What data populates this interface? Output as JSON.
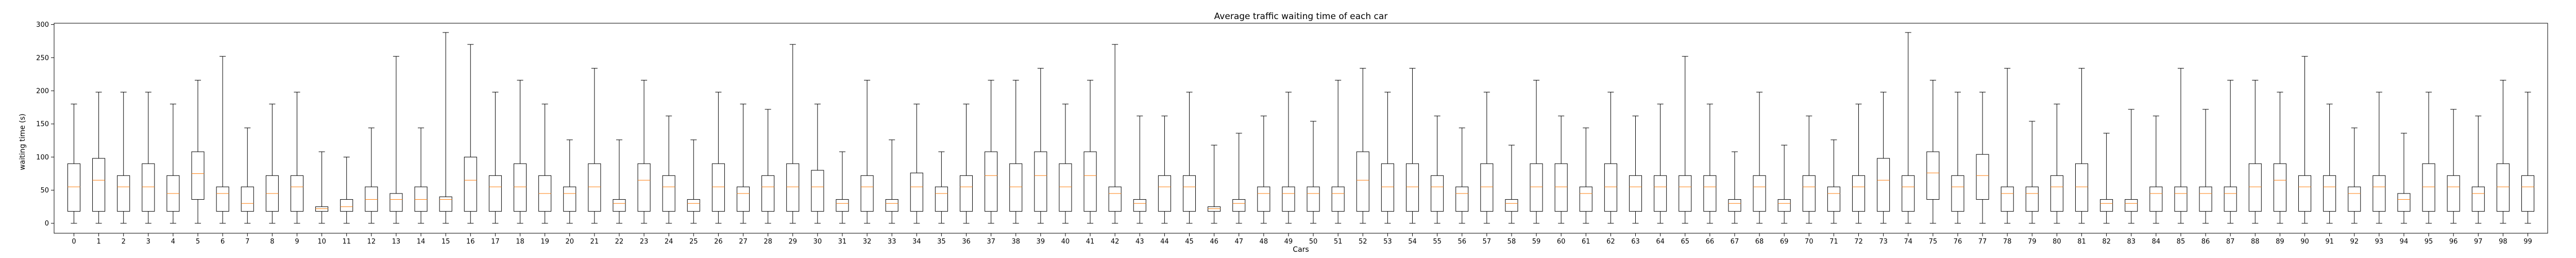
{
  "chart_data": {
    "type": "boxplot",
    "title": "Average traffic waiting time of each car",
    "xlabel": "Cars",
    "ylabel": "waiting time (s)",
    "ylim": [
      -15,
      302
    ],
    "yticks": [
      0,
      50,
      100,
      150,
      200,
      250,
      300
    ],
    "categories": [
      "0",
      "1",
      "2",
      "3",
      "4",
      "5",
      "6",
      "7",
      "8",
      "9",
      "10",
      "11",
      "12",
      "13",
      "14",
      "15",
      "16",
      "17",
      "18",
      "19",
      "20",
      "21",
      "22",
      "23",
      "24",
      "25",
      "26",
      "27",
      "28",
      "29",
      "30",
      "31",
      "32",
      "33",
      "34",
      "35",
      "36",
      "37",
      "38",
      "39",
      "40",
      "41",
      "42",
      "43",
      "44",
      "45",
      "46",
      "47",
      "48",
      "49",
      "50",
      "51",
      "52",
      "53",
      "54",
      "55",
      "56",
      "57",
      "58",
      "59",
      "60",
      "61",
      "62",
      "63",
      "64",
      "65",
      "66",
      "67",
      "68",
      "69",
      "70",
      "71",
      "72",
      "73",
      "74",
      "75",
      "76",
      "77",
      "78",
      "79",
      "80",
      "81",
      "82",
      "83",
      "84",
      "85",
      "86",
      "87",
      "88",
      "89",
      "90",
      "91",
      "92",
      "93",
      "94",
      "95",
      "96",
      "97",
      "98",
      "99"
    ],
    "boxes": [
      {
        "whislo": 0,
        "q1": 18,
        "med": 55,
        "q3": 90,
        "whishi": 180
      },
      {
        "whislo": 0,
        "q1": 18,
        "med": 65,
        "q3": 98,
        "whishi": 198
      },
      {
        "whislo": 0,
        "q1": 18,
        "med": 55,
        "q3": 72,
        "whishi": 198
      },
      {
        "whislo": 0,
        "q1": 18,
        "med": 55,
        "q3": 90,
        "whishi": 198
      },
      {
        "whislo": 0,
        "q1": 18,
        "med": 45,
        "q3": 72,
        "whishi": 180
      },
      {
        "whislo": 0,
        "q1": 36,
        "med": 75,
        "q3": 108,
        "whishi": 216
      },
      {
        "whislo": 0,
        "q1": 18,
        "med": 45,
        "q3": 55,
        "whishi": 252
      },
      {
        "whislo": 0,
        "q1": 18,
        "med": 30,
        "q3": 55,
        "whishi": 144
      },
      {
        "whislo": 0,
        "q1": 18,
        "med": 45,
        "q3": 72,
        "whishi": 180
      },
      {
        "whislo": 0,
        "q1": 18,
        "med": 55,
        "q3": 72,
        "whishi": 198
      },
      {
        "whislo": 0,
        "q1": 18,
        "med": 22,
        "q3": 25,
        "whishi": 108
      },
      {
        "whislo": 0,
        "q1": 18,
        "med": 25,
        "q3": 36,
        "whishi": 100
      },
      {
        "whislo": 0,
        "q1": 18,
        "med": 36,
        "q3": 55,
        "whishi": 144
      },
      {
        "whislo": 0,
        "q1": 18,
        "med": 36,
        "q3": 45,
        "whishi": 252
      },
      {
        "whislo": 0,
        "q1": 18,
        "med": 36,
        "q3": 55,
        "whishi": 144
      },
      {
        "whislo": 0,
        "q1": 18,
        "med": 36,
        "q3": 40,
        "whishi": 288
      },
      {
        "whislo": 0,
        "q1": 18,
        "med": 65,
        "q3": 100,
        "whishi": 270
      },
      {
        "whislo": 0,
        "q1": 18,
        "med": 55,
        "q3": 72,
        "whishi": 198
      },
      {
        "whislo": 0,
        "q1": 18,
        "med": 55,
        "q3": 90,
        "whishi": 216
      },
      {
        "whislo": 0,
        "q1": 18,
        "med": 45,
        "q3": 72,
        "whishi": 180
      },
      {
        "whislo": 0,
        "q1": 18,
        "med": 45,
        "q3": 55,
        "whishi": 126
      },
      {
        "whislo": 0,
        "q1": 18,
        "med": 55,
        "q3": 90,
        "whishi": 234
      },
      {
        "whislo": 0,
        "q1": 18,
        "med": 30,
        "q3": 36,
        "whishi": 126
      },
      {
        "whislo": 0,
        "q1": 18,
        "med": 65,
        "q3": 90,
        "whishi": 216
      },
      {
        "whislo": 0,
        "q1": 18,
        "med": 55,
        "q3": 72,
        "whishi": 162
      },
      {
        "whislo": 0,
        "q1": 18,
        "med": 30,
        "q3": 36,
        "whishi": 126
      },
      {
        "whislo": 0,
        "q1": 18,
        "med": 55,
        "q3": 90,
        "whishi": 198
      },
      {
        "whislo": 0,
        "q1": 18,
        "med": 45,
        "q3": 55,
        "whishi": 180
      },
      {
        "whislo": 0,
        "q1": 18,
        "med": 55,
        "q3": 72,
        "whishi": 172
      },
      {
        "whislo": 0,
        "q1": 18,
        "med": 55,
        "q3": 90,
        "whishi": 270
      },
      {
        "whislo": 0,
        "q1": 18,
        "med": 55,
        "q3": 80,
        "whishi": 180
      },
      {
        "whislo": 0,
        "q1": 18,
        "med": 30,
        "q3": 36,
        "whishi": 108
      },
      {
        "whislo": 0,
        "q1": 18,
        "med": 55,
        "q3": 72,
        "whishi": 216
      },
      {
        "whislo": 0,
        "q1": 18,
        "med": 30,
        "q3": 36,
        "whishi": 126
      },
      {
        "whislo": 0,
        "q1": 18,
        "med": 55,
        "q3": 76,
        "whishi": 180
      },
      {
        "whislo": 0,
        "q1": 18,
        "med": 45,
        "q3": 55,
        "whishi": 108
      },
      {
        "whislo": 0,
        "q1": 18,
        "med": 55,
        "q3": 72,
        "whishi": 180
      },
      {
        "whislo": 0,
        "q1": 18,
        "med": 72,
        "q3": 108,
        "whishi": 216
      },
      {
        "whislo": 0,
        "q1": 18,
        "med": 55,
        "q3": 90,
        "whishi": 216
      },
      {
        "whislo": 0,
        "q1": 18,
        "med": 72,
        "q3": 108,
        "whishi": 234
      },
      {
        "whislo": 0,
        "q1": 18,
        "med": 55,
        "q3": 90,
        "whishi": 180
      },
      {
        "whislo": 0,
        "q1": 18,
        "med": 72,
        "q3": 108,
        "whishi": 216
      },
      {
        "whislo": 0,
        "q1": 18,
        "med": 45,
        "q3": 55,
        "whishi": 270
      },
      {
        "whislo": 0,
        "q1": 18,
        "med": 30,
        "q3": 36,
        "whishi": 162
      },
      {
        "whislo": 0,
        "q1": 18,
        "med": 55,
        "q3": 72,
        "whishi": 162
      },
      {
        "whislo": 0,
        "q1": 18,
        "med": 55,
        "q3": 72,
        "whishi": 198
      },
      {
        "whislo": 0,
        "q1": 18,
        "med": 22,
        "q3": 25,
        "whishi": 118
      },
      {
        "whislo": 0,
        "q1": 18,
        "med": 30,
        "q3": 36,
        "whishi": 136
      },
      {
        "whislo": 0,
        "q1": 18,
        "med": 45,
        "q3": 55,
        "whishi": 162
      },
      {
        "whislo": 0,
        "q1": 18,
        "med": 45,
        "q3": 55,
        "whishi": 198
      },
      {
        "whislo": 0,
        "q1": 18,
        "med": 45,
        "q3": 55,
        "whishi": 154
      },
      {
        "whislo": 0,
        "q1": 18,
        "med": 45,
        "q3": 55,
        "whishi": 216
      },
      {
        "whislo": 0,
        "q1": 18,
        "med": 65,
        "q3": 108,
        "whishi": 234
      },
      {
        "whislo": 0,
        "q1": 18,
        "med": 55,
        "q3": 90,
        "whishi": 198
      },
      {
        "whislo": 0,
        "q1": 18,
        "med": 55,
        "q3": 90,
        "whishi": 234
      },
      {
        "whislo": 0,
        "q1": 18,
        "med": 55,
        "q3": 72,
        "whishi": 162
      },
      {
        "whislo": 0,
        "q1": 18,
        "med": 45,
        "q3": 55,
        "whishi": 144
      },
      {
        "whislo": 0,
        "q1": 18,
        "med": 55,
        "q3": 90,
        "whishi": 198
      },
      {
        "whislo": 0,
        "q1": 18,
        "med": 30,
        "q3": 36,
        "whishi": 118
      },
      {
        "whislo": 0,
        "q1": 18,
        "med": 55,
        "q3": 90,
        "whishi": 216
      },
      {
        "whislo": 0,
        "q1": 18,
        "med": 55,
        "q3": 90,
        "whishi": 162
      },
      {
        "whislo": 0,
        "q1": 18,
        "med": 45,
        "q3": 55,
        "whishi": 144
      },
      {
        "whislo": 0,
        "q1": 18,
        "med": 55,
        "q3": 90,
        "whishi": 198
      },
      {
        "whislo": 0,
        "q1": 18,
        "med": 55,
        "q3": 72,
        "whishi": 162
      },
      {
        "whislo": 0,
        "q1": 18,
        "med": 55,
        "q3": 72,
        "whishi": 180
      },
      {
        "whislo": 0,
        "q1": 18,
        "med": 55,
        "q3": 72,
        "whishi": 252
      },
      {
        "whislo": 0,
        "q1": 18,
        "med": 55,
        "q3": 72,
        "whishi": 180
      },
      {
        "whislo": 0,
        "q1": 18,
        "med": 30,
        "q3": 36,
        "whishi": 108
      },
      {
        "whislo": 0,
        "q1": 18,
        "med": 55,
        "q3": 72,
        "whishi": 198
      },
      {
        "whislo": 0,
        "q1": 18,
        "med": 30,
        "q3": 36,
        "whishi": 118
      },
      {
        "whislo": 0,
        "q1": 18,
        "med": 55,
        "q3": 72,
        "whishi": 162
      },
      {
        "whislo": 0,
        "q1": 18,
        "med": 45,
        "q3": 55,
        "whishi": 126
      },
      {
        "whislo": 0,
        "q1": 18,
        "med": 55,
        "q3": 72,
        "whishi": 180
      },
      {
        "whislo": 0,
        "q1": 18,
        "med": 65,
        "q3": 98,
        "whishi": 198
      },
      {
        "whislo": 0,
        "q1": 18,
        "med": 55,
        "q3": 72,
        "whishi": 288
      },
      {
        "whislo": 0,
        "q1": 36,
        "med": 76,
        "q3": 108,
        "whishi": 216
      },
      {
        "whislo": 0,
        "q1": 18,
        "med": 55,
        "q3": 72,
        "whishi": 198
      },
      {
        "whislo": 0,
        "q1": 36,
        "med": 72,
        "q3": 104,
        "whishi": 198
      },
      {
        "whislo": 0,
        "q1": 18,
        "med": 45,
        "q3": 55,
        "whishi": 234
      },
      {
        "whislo": 0,
        "q1": 18,
        "med": 45,
        "q3": 55,
        "whishi": 154
      },
      {
        "whislo": 0,
        "q1": 18,
        "med": 55,
        "q3": 72,
        "whishi": 180
      },
      {
        "whislo": 0,
        "q1": 18,
        "med": 55,
        "q3": 90,
        "whishi": 234
      },
      {
        "whislo": 0,
        "q1": 18,
        "med": 30,
        "q3": 36,
        "whishi": 136
      },
      {
        "whislo": 0,
        "q1": 18,
        "med": 30,
        "q3": 36,
        "whishi": 172
      },
      {
        "whislo": 0,
        "q1": 18,
        "med": 45,
        "q3": 55,
        "whishi": 162
      },
      {
        "whislo": 0,
        "q1": 18,
        "med": 45,
        "q3": 55,
        "whishi": 234
      },
      {
        "whislo": 0,
        "q1": 18,
        "med": 45,
        "q3": 55,
        "whishi": 172
      },
      {
        "whislo": 0,
        "q1": 18,
        "med": 45,
        "q3": 55,
        "whishi": 216
      },
      {
        "whislo": 0,
        "q1": 18,
        "med": 55,
        "q3": 90,
        "whishi": 216
      },
      {
        "whislo": 0,
        "q1": 18,
        "med": 65,
        "q3": 90,
        "whishi": 198
      },
      {
        "whislo": 0,
        "q1": 18,
        "med": 55,
        "q3": 72,
        "whishi": 252
      },
      {
        "whislo": 0,
        "q1": 18,
        "med": 55,
        "q3": 72,
        "whishi": 180
      },
      {
        "whislo": 0,
        "q1": 18,
        "med": 45,
        "q3": 55,
        "whishi": 144
      },
      {
        "whislo": 0,
        "q1": 18,
        "med": 55,
        "q3": 72,
        "whishi": 198
      },
      {
        "whislo": 0,
        "q1": 18,
        "med": 36,
        "q3": 45,
        "whishi": 136
      },
      {
        "whislo": 0,
        "q1": 18,
        "med": 55,
        "q3": 90,
        "whishi": 198
      },
      {
        "whislo": 0,
        "q1": 18,
        "med": 55,
        "q3": 72,
        "whishi": 172
      },
      {
        "whislo": 0,
        "q1": 18,
        "med": 45,
        "q3": 55,
        "whishi": 162
      },
      {
        "whislo": 0,
        "q1": 18,
        "med": 55,
        "q3": 90,
        "whishi": 216
      },
      {
        "whislo": 0,
        "q1": 18,
        "med": 55,
        "q3": 72,
        "whishi": 198
      }
    ],
    "colors": {
      "box": "#000000",
      "median": "#ff7f0e",
      "background": "#ffffff"
    }
  }
}
